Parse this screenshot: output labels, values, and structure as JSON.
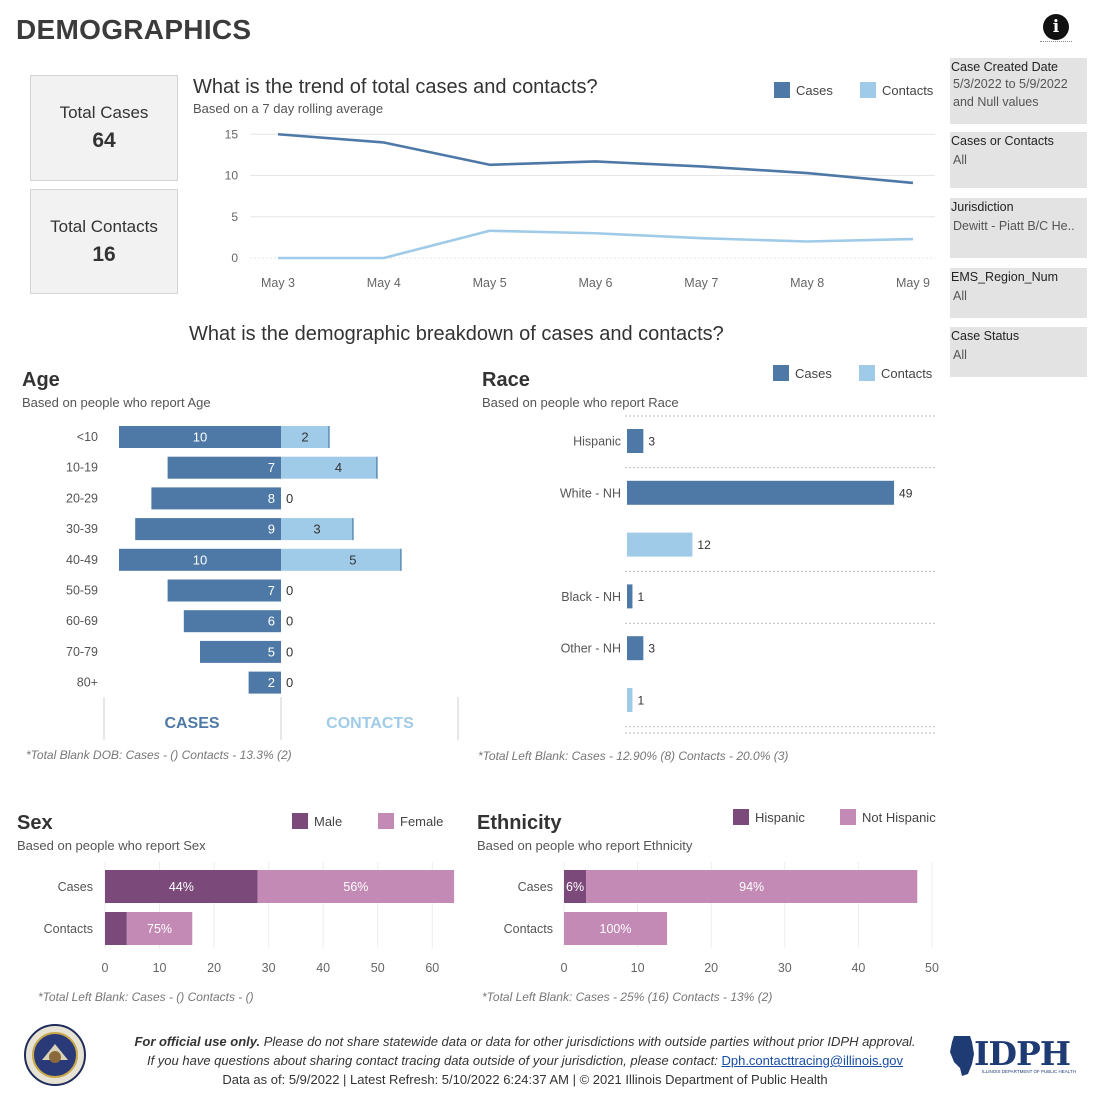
{
  "page_title": "DEMOGRAPHICS",
  "kpis": {
    "total_cases_label": "Total Cases",
    "total_cases_value": "64",
    "total_contacts_label": "Total Contacts",
    "total_contacts_value": "16"
  },
  "filters": [
    {
      "label": "Case Created Date",
      "value": "5/3/2022 to 5/9/2022 and Null values"
    },
    {
      "label": "Cases or Contacts",
      "value": "All"
    },
    {
      "label": "Jurisdiction",
      "value": "Dewitt - Piatt B/C He.."
    },
    {
      "label": "EMS_Region_Num",
      "value": "All"
    },
    {
      "label": "Case Status",
      "value": "All"
    }
  ],
  "legend": {
    "cases": "Cases",
    "contacts": "Contacts",
    "male": "Male",
    "female": "Female",
    "hispanic": "Hispanic",
    "not_hispanic": "Not Hispanic"
  },
  "colors": {
    "cases": "#4e79a7",
    "contacts": "#a0cbe8",
    "male": "#7b4a7b",
    "female": "#c48ab6"
  },
  "trend": {
    "title": "What is the trend of total cases and contacts?",
    "subtitle": "Based on a 7 day rolling average"
  },
  "demographic_heading": "What is the demographic breakdown of cases and contacts?",
  "age": {
    "title": "Age",
    "subtitle": "Based on people who report Age",
    "cases_header": "CASES",
    "contacts_header": "CONTACTS",
    "note": "*Total Blank DOB: Cases -  () Contacts - 13.3% (2)"
  },
  "race": {
    "title": "Race",
    "subtitle": "Based on people who report Race",
    "note": "*Total Left Blank: Cases - 12.90% (8) Contacts - 20.0% (3)"
  },
  "sex": {
    "title": "Sex",
    "subtitle": "Based on people who report Sex",
    "note": "*Total Left Blank: Cases -  () Contacts -  ()"
  },
  "ethnicity": {
    "title": "Ethnicity",
    "subtitle": "Based on people who report Ethnicity",
    "note": "*Total Left Blank: Cases - 25% (16) Contacts - 13% (2)"
  },
  "footer": {
    "line1_bold": "For official use only.",
    "line1_rest": " Please do not share statewide data or data for other jurisdictions with outside parties without prior IDPH approval.",
    "line2": "If you have questions about sharing contact tracing data outside of your jurisdiction, please contact: ",
    "email": "Dph.contacttracing@illinois.gov",
    "line3": "Data as of: 5/9/2022  |  Latest Refresh: 5/10/2022 6:24:37 AM  |  © 2021 Illinois Department of Public Health",
    "logo_text": "IDPH",
    "logo_sub": "ILLINOIS DEPARTMENT OF PUBLIC HEALTH"
  },
  "chart_data": [
    {
      "type": "line",
      "x": [
        "May 3",
        "May 4",
        "May 5",
        "May 6",
        "May 7",
        "May 8",
        "May 9"
      ],
      "series": [
        {
          "name": "Cases",
          "values": [
            15.0,
            14.0,
            11.3,
            11.7,
            11.1,
            10.3,
            9.1
          ]
        },
        {
          "name": "Contacts",
          "values": [
            0.0,
            0.0,
            3.3,
            3.0,
            2.4,
            2.0,
            2.3
          ]
        }
      ],
      "yticks": [
        0,
        5,
        10,
        15
      ],
      "ylim": [
        0,
        16
      ],
      "grid": true
    },
    {
      "type": "bar",
      "categories": [
        "<10",
        "10-19",
        "20-29",
        "30-39",
        "40-49",
        "50-59",
        "60-69",
        "70-79",
        "80+"
      ],
      "series": [
        {
          "name": "Cases",
          "values": [
            10,
            7,
            8,
            9,
            10,
            7,
            6,
            5,
            2
          ]
        },
        {
          "name": "Contacts",
          "values": [
            2,
            4,
            0,
            3,
            5,
            0,
            0,
            0,
            0
          ]
        }
      ]
    },
    {
      "type": "bar",
      "rows": [
        {
          "category": "Hispanic",
          "series": "Cases",
          "value": 3
        },
        {
          "category": "White - NH",
          "series": "Cases",
          "value": 49
        },
        {
          "category": "",
          "series": "Contacts",
          "value": 12
        },
        {
          "category": "Black - NH",
          "series": "Cases",
          "value": 1
        },
        {
          "category": "Other - NH",
          "series": "Cases",
          "value": 3
        },
        {
          "category": "",
          "series": "Contacts",
          "value": 1
        }
      ],
      "xlim": [
        0,
        50
      ]
    },
    {
      "type": "bar",
      "stacked": true,
      "categories": [
        "Cases",
        "Contacts"
      ],
      "series": [
        {
          "name": "Male",
          "values": [
            28,
            4
          ],
          "labels": [
            "44%",
            ""
          ]
        },
        {
          "name": "Female",
          "values": [
            36,
            12
          ],
          "labels": [
            "56%",
            "75%"
          ]
        }
      ],
      "xticks": [
        0,
        10,
        20,
        30,
        40,
        50,
        60
      ],
      "xlim": [
        0,
        66
      ]
    },
    {
      "type": "bar",
      "stacked": true,
      "categories": [
        "Cases",
        "Contacts"
      ],
      "series": [
        {
          "name": "Hispanic",
          "values": [
            3,
            0
          ],
          "labels": [
            "6%",
            ""
          ]
        },
        {
          "name": "Not Hispanic",
          "values": [
            45,
            14
          ],
          "labels": [
            "94%",
            "100%"
          ]
        }
      ],
      "xticks": [
        0,
        10,
        20,
        30,
        40,
        50
      ],
      "xlim": [
        0,
        50
      ]
    }
  ]
}
